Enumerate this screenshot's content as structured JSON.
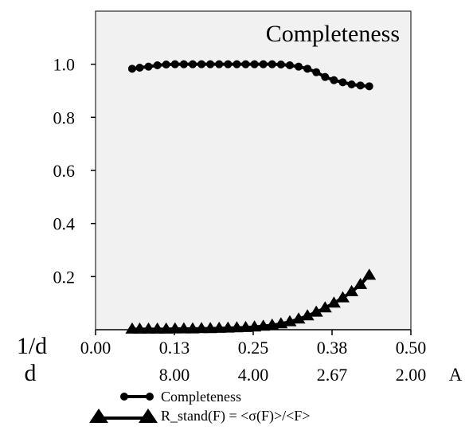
{
  "chart_data": {
    "type": "line",
    "title": "Completeness",
    "x_axis": {
      "label": "1/d",
      "range": [
        0.0,
        0.5
      ],
      "ticks": [
        0.0,
        0.125,
        0.25,
        0.375,
        0.5
      ],
      "tick_labels": [
        "0.00",
        "0.13",
        "0.25",
        "0.38",
        "0.50"
      ]
    },
    "d_axis": {
      "label": "d",
      "unit": "A",
      "tick_labels": [
        "8.00",
        "4.00",
        "2.67",
        "2.00"
      ]
    },
    "y_axis": {
      "range": [
        0.0,
        1.2
      ],
      "ticks": [
        0.2,
        0.4,
        0.6,
        0.8,
        1.0
      ],
      "tick_labels": [
        "0.2",
        "0.4",
        "0.6",
        "0.8",
        "1.0"
      ]
    },
    "grid": false,
    "legend_position": "bottom",
    "series": [
      {
        "name": "Completeness",
        "marker": "circle",
        "color": "#000000",
        "x": [
          0.058,
          0.07,
          0.084,
          0.098,
          0.112,
          0.126,
          0.14,
          0.154,
          0.168,
          0.182,
          0.196,
          0.21,
          0.224,
          0.238,
          0.252,
          0.266,
          0.28,
          0.294,
          0.308,
          0.322,
          0.336,
          0.35,
          0.364,
          0.378,
          0.392,
          0.406,
          0.42,
          0.434
        ],
        "values": [
          0.983,
          0.987,
          0.991,
          0.996,
          0.999,
          1.0,
          1.0,
          1.0,
          1.0,
          1.0,
          1.0,
          1.0,
          1.0,
          1.0,
          1.0,
          1.0,
          1.0,
          0.999,
          0.996,
          0.991,
          0.983,
          0.97,
          0.952,
          0.94,
          0.932,
          0.924,
          0.92,
          0.917
        ]
      },
      {
        "name": "R_stand(F) = <σ(F)>/<F>",
        "marker": "triangle",
        "color": "#000000",
        "x": [
          0.058,
          0.07,
          0.084,
          0.098,
          0.112,
          0.126,
          0.14,
          0.154,
          0.168,
          0.182,
          0.196,
          0.21,
          0.224,
          0.238,
          0.252,
          0.266,
          0.28,
          0.294,
          0.308,
          0.322,
          0.336,
          0.35,
          0.364,
          0.378,
          0.392,
          0.406,
          0.42,
          0.434
        ],
        "values": [
          0.002,
          0.002,
          0.002,
          0.002,
          0.002,
          0.003,
          0.003,
          0.003,
          0.004,
          0.004,
          0.005,
          0.006,
          0.007,
          0.008,
          0.01,
          0.013,
          0.017,
          0.022,
          0.03,
          0.04,
          0.052,
          0.066,
          0.082,
          0.1,
          0.12,
          0.143,
          0.17,
          0.205
        ]
      }
    ]
  }
}
